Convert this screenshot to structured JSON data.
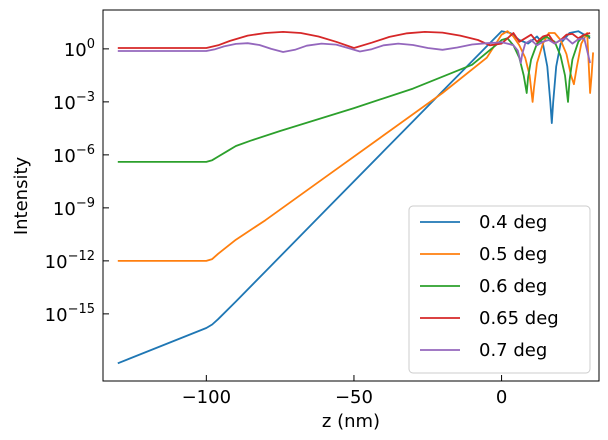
{
  "chart_data": {
    "type": "line",
    "title": "",
    "xlabel": "z (nm)",
    "ylabel": "Intensity",
    "xlim": [
      -135,
      33
    ],
    "ylim_log10": [
      -18.8,
      2.2
    ],
    "y_scale": "log",
    "x_ticks": [
      {
        "value": -100,
        "label": "−100"
      },
      {
        "value": -50,
        "label": "−50"
      },
      {
        "value": 0,
        "label": "0"
      }
    ],
    "y_ticks": [
      {
        "exp": 0,
        "base": "10",
        "sup": "0"
      },
      {
        "exp": -3,
        "base": "10",
        "sup": "−3"
      },
      {
        "exp": -6,
        "base": "10",
        "sup": "−6"
      },
      {
        "exp": -9,
        "base": "10",
        "sup": "−9"
      },
      {
        "exp": -12,
        "base": "10",
        "sup": "−12"
      },
      {
        "exp": -15,
        "base": "10",
        "sup": "−15"
      }
    ],
    "grid": false,
    "legend_position": "lower-right",
    "series": [
      {
        "name": "0.4 deg",
        "color": "#1f77b4",
        "points": [
          [
            -130,
            -17.8
          ],
          [
            -100,
            -15.8
          ],
          [
            -98,
            -15.6
          ],
          [
            -96,
            -15.3
          ],
          [
            -90,
            -14.3
          ],
          [
            -80,
            -12.6
          ],
          [
            -60,
            -9.2
          ],
          [
            -40,
            -5.8
          ],
          [
            -20,
            -2.4
          ],
          [
            -5,
            0.15
          ],
          [
            0,
            1.0
          ],
          [
            3,
            0.9
          ],
          [
            6,
            0.5
          ],
          [
            9,
            0.3
          ],
          [
            12,
            0.7
          ],
          [
            14,
            0.3
          ],
          [
            15.5,
            -1.0
          ],
          [
            16.5,
            -3.0
          ],
          [
            17,
            -4.2
          ],
          [
            17.5,
            -3.0
          ],
          [
            18.5,
            -1.0
          ],
          [
            20,
            0.3
          ],
          [
            23,
            0.9
          ],
          [
            26,
            1.0
          ],
          [
            28,
            0.8
          ],
          [
            30,
            0.6
          ]
        ]
      },
      {
        "name": "0.5 deg",
        "color": "#ff7f0e",
        "points": [
          [
            -130,
            -12.0
          ],
          [
            -100,
            -12.0
          ],
          [
            -98,
            -11.9
          ],
          [
            -96,
            -11.6
          ],
          [
            -90,
            -10.8
          ],
          [
            -80,
            -9.7
          ],
          [
            -60,
            -7.3
          ],
          [
            -40,
            -4.9
          ],
          [
            -20,
            -2.5
          ],
          [
            -5,
            -0.5
          ],
          [
            0,
            0.8
          ],
          [
            2,
            1.0
          ],
          [
            4,
            0.7
          ],
          [
            6,
            0.2
          ],
          [
            8,
            -0.5
          ],
          [
            9.5,
            -1.5
          ],
          [
            10.5,
            -3.0
          ],
          [
            11,
            -2.2
          ],
          [
            12,
            -0.8
          ],
          [
            14,
            0.3
          ],
          [
            16,
            0.9
          ],
          [
            18,
            0.9
          ],
          [
            20,
            0.5
          ],
          [
            22,
            -0.3
          ],
          [
            23.5,
            -1.5
          ],
          [
            24.5,
            -2.0
          ],
          [
            25.5,
            -1.0
          ],
          [
            27,
            0.3
          ],
          [
            29,
            0.9
          ],
          [
            30,
            -2.5
          ],
          [
            30.5,
            -1.5
          ],
          [
            31,
            -0.2
          ]
        ]
      },
      {
        "name": "0.6 deg",
        "color": "#2ca02c",
        "points": [
          [
            -130,
            -6.4
          ],
          [
            -100,
            -6.4
          ],
          [
            -98,
            -6.3
          ],
          [
            -96,
            -6.1
          ],
          [
            -93,
            -5.8
          ],
          [
            -90,
            -5.5
          ],
          [
            -85,
            -5.2
          ],
          [
            -75,
            -4.65
          ],
          [
            -50,
            -3.35
          ],
          [
            -30,
            -2.25
          ],
          [
            -10,
            -0.9
          ],
          [
            -2,
            0.2
          ],
          [
            0,
            0.5
          ],
          [
            2,
            0.6
          ],
          [
            4,
            0.2
          ],
          [
            6,
            -0.5
          ],
          [
            7.5,
            -1.5
          ],
          [
            8.5,
            -2.5
          ],
          [
            9,
            -1.6
          ],
          [
            10,
            -0.6
          ],
          [
            12,
            0.3
          ],
          [
            15,
            0.7
          ],
          [
            18,
            0.4
          ],
          [
            20,
            -0.4
          ],
          [
            21.5,
            -1.5
          ],
          [
            22.5,
            -3.0
          ],
          [
            23,
            -1.8
          ],
          [
            24,
            -0.6
          ],
          [
            26,
            0.4
          ],
          [
            28,
            0.8
          ],
          [
            30,
            0.7
          ]
        ]
      },
      {
        "name": "0.65 deg",
        "color": "#d62728",
        "points": [
          [
            -130,
            0.05
          ],
          [
            -100,
            0.05
          ],
          [
            -96,
            0.2
          ],
          [
            -92,
            0.45
          ],
          [
            -86,
            0.75
          ],
          [
            -80,
            0.9
          ],
          [
            -74,
            0.96
          ],
          [
            -68,
            0.9
          ],
          [
            -62,
            0.7
          ],
          [
            -56,
            0.4
          ],
          [
            -50,
            0.05
          ],
          [
            -44,
            0.35
          ],
          [
            -38,
            0.68
          ],
          [
            -32,
            0.88
          ],
          [
            -26,
            0.96
          ],
          [
            -20,
            0.92
          ],
          [
            -14,
            0.75
          ],
          [
            -8,
            0.5
          ],
          [
            -4,
            0.2
          ],
          [
            0,
            0.3
          ],
          [
            2,
            0.6
          ],
          [
            4,
            0.9
          ],
          [
            6,
            0.4
          ],
          [
            8,
            0.6
          ],
          [
            10,
            0.8
          ],
          [
            12,
            0.4
          ],
          [
            14,
            0.7
          ],
          [
            16,
            0.8
          ],
          [
            18,
            0.3
          ],
          [
            20,
            0.5
          ],
          [
            22,
            0.8
          ],
          [
            24,
            0.85
          ],
          [
            26,
            0.6
          ],
          [
            28,
            0.8
          ],
          [
            30,
            0.9
          ]
        ]
      },
      {
        "name": "0.7 deg",
        "color": "#9467bd",
        "points": [
          [
            -130,
            -0.12
          ],
          [
            -100,
            -0.12
          ],
          [
            -97,
            -0.02
          ],
          [
            -94,
            0.14
          ],
          [
            -90,
            0.28
          ],
          [
            -86,
            0.32
          ],
          [
            -82,
            0.22
          ],
          [
            -78,
            0.0
          ],
          [
            -74,
            -0.18
          ],
          [
            -70,
            -0.05
          ],
          [
            -66,
            0.18
          ],
          [
            -61,
            0.3
          ],
          [
            -56,
            0.24
          ],
          [
            -52,
            0.05
          ],
          [
            -48,
            -0.15
          ],
          [
            -44,
            -0.02
          ],
          [
            -40,
            0.2
          ],
          [
            -35,
            0.3
          ],
          [
            -30,
            0.22
          ],
          [
            -25,
            0.05
          ],
          [
            -20,
            -0.05
          ],
          [
            -15,
            0.08
          ],
          [
            -10,
            0.25
          ],
          [
            -5,
            0.32
          ],
          [
            -2,
            0.35
          ],
          [
            0,
            0.38
          ],
          [
            2,
            0.3
          ],
          [
            4,
            0.2
          ],
          [
            5.5,
            -0.1
          ],
          [
            6.5,
            -0.8
          ],
          [
            7,
            -0.3
          ],
          [
            8,
            0.3
          ],
          [
            10,
            0.5
          ],
          [
            12,
            0.2
          ],
          [
            14,
            0.4
          ],
          [
            16,
            0.5
          ],
          [
            18,
            0.3
          ],
          [
            20,
            0.5
          ],
          [
            22,
            0.6
          ],
          [
            24,
            0.3
          ],
          [
            26,
            0.55
          ],
          [
            28,
            0.6
          ],
          [
            30,
            -0.8
          ]
        ]
      }
    ]
  }
}
